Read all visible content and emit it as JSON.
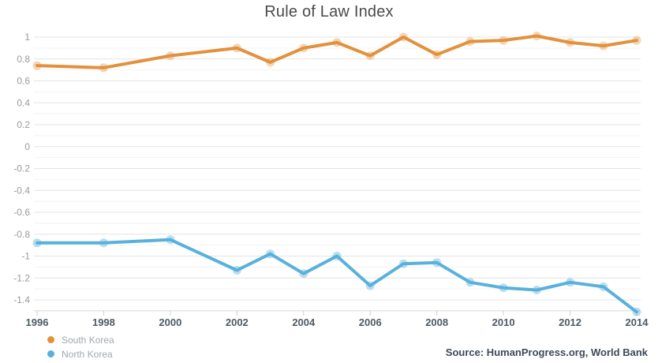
{
  "title": "Rule of Law Index",
  "source": "Source: HumanProgress.org, World Bank",
  "colors": {
    "south_korea": "#e2913c",
    "north_korea": "#58b1dc",
    "south_korea_halo": "rgba(226,145,60,0.38)",
    "north_korea_halo": "rgba(88,177,220,0.42)",
    "grid_major": "#e4e4e4",
    "grid_minor": "#f3f3f3",
    "axis_line": "#d8d8d8",
    "tick": "#cfcfcf"
  },
  "chart_data": {
    "type": "line",
    "title": "Rule of Law Index",
    "xlabel": "",
    "ylabel": "",
    "x": [
      1996,
      1998,
      2000,
      2002,
      2003,
      2004,
      2005,
      2006,
      2007,
      2008,
      2009,
      2010,
      2011,
      2012,
      2013,
      2014
    ],
    "series": [
      {
        "name": "South Korea",
        "color": "#e2913c",
        "halo": "rgba(226,145,60,0.38)",
        "values": [
          0.74,
          0.72,
          0.83,
          0.9,
          0.77,
          0.9,
          0.95,
          0.83,
          1.0,
          0.84,
          0.96,
          0.97,
          1.01,
          0.95,
          0.92,
          0.97
        ]
      },
      {
        "name": "North Korea",
        "color": "#58b1dc",
        "halo": "rgba(88,177,220,0.42)",
        "values": [
          -0.88,
          -0.88,
          -0.85,
          -1.13,
          -0.98,
          -1.16,
          -1.0,
          -1.27,
          -1.07,
          -1.06,
          -1.24,
          -1.29,
          -1.31,
          -1.24,
          -1.28,
          -1.51
        ]
      }
    ],
    "xticks": [
      1996,
      1998,
      2000,
      2002,
      2004,
      2006,
      2008,
      2010,
      2012,
      2014
    ],
    "xlim": [
      1996,
      2014
    ],
    "ylim": [
      -1.5,
      1.0
    ],
    "ytick_step": 0.2,
    "ytick_minor_step": 0.1,
    "grid": true,
    "legend_position": "bottom-left"
  }
}
